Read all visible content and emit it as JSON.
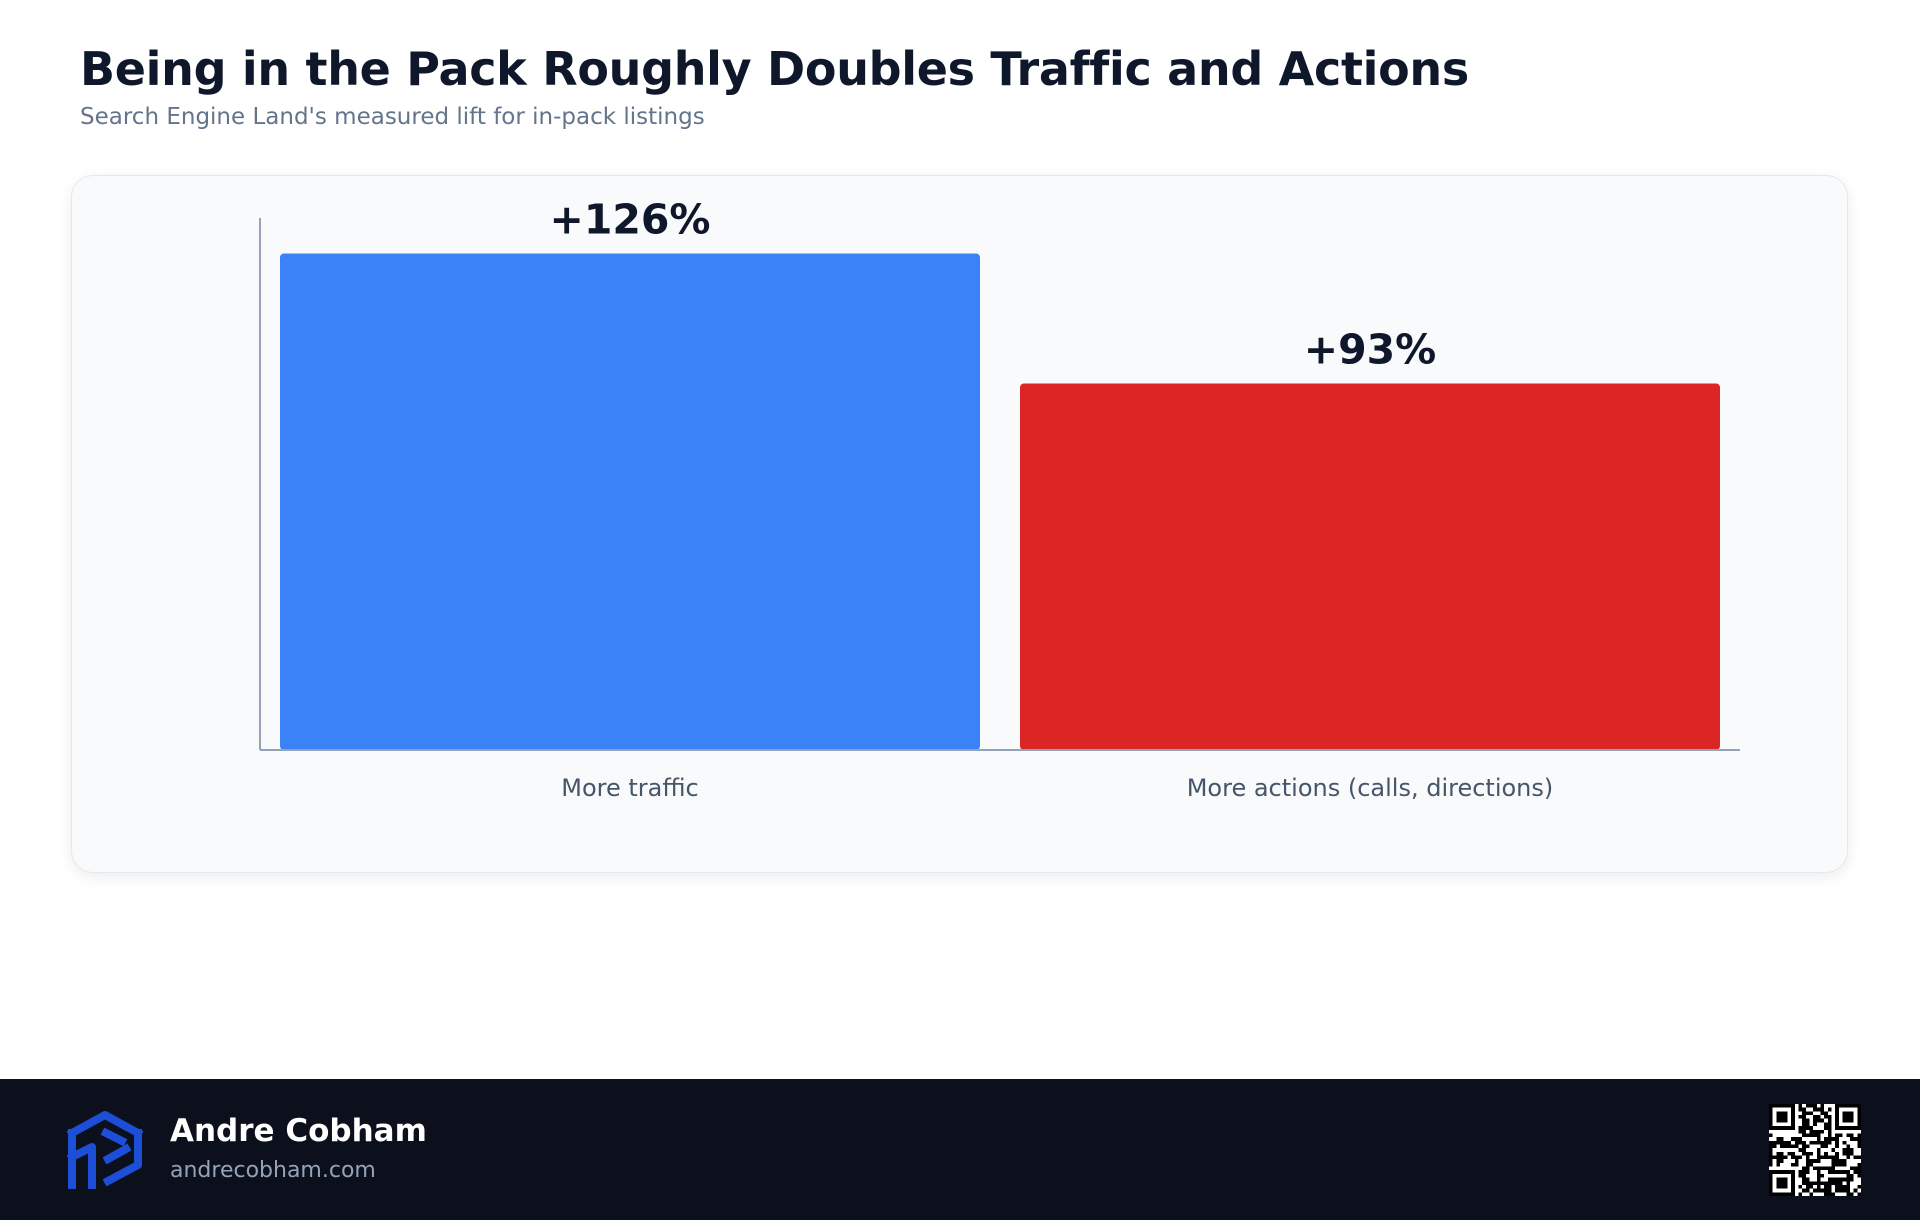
{
  "header": {
    "title": "Being in the Pack Roughly Doubles Traffic and Actions",
    "subtitle": "Search Engine Land's measured lift for in-pack listings"
  },
  "chart_data": {
    "type": "bar",
    "categories": [
      "More traffic",
      "More actions (calls, directions)"
    ],
    "values": [
      126,
      93
    ],
    "value_labels": [
      "+126%",
      "+93%"
    ],
    "colors": [
      "#3b82f6",
      "#dc2626"
    ],
    "ylim": [
      0,
      135
    ],
    "grid": false,
    "legend": "none"
  },
  "footer": {
    "author_name": "Andre Cobham",
    "author_site": "andrecobham.com",
    "logo_icon": "cube-logo-icon",
    "qr_icon": "qr-code-icon",
    "accent": "#1d4ed8"
  }
}
